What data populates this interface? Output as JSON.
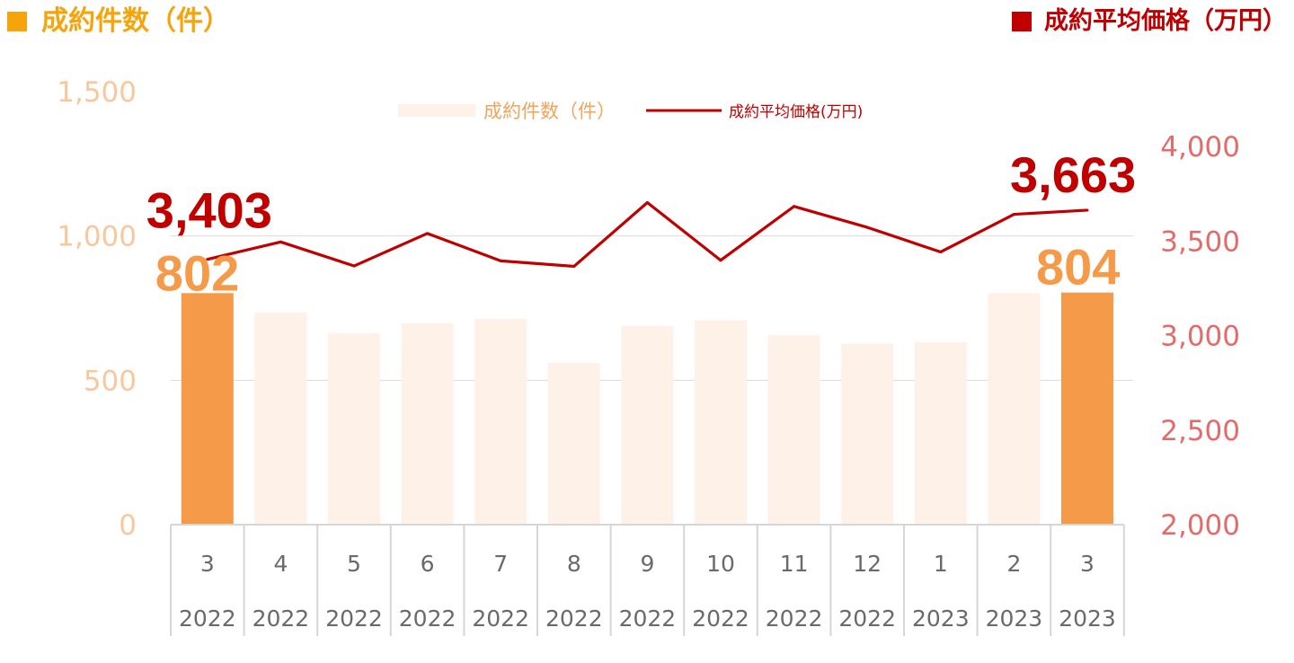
{
  "header": {
    "left_title": "成約件数（件）",
    "right_title": "成約平均価格（万円）"
  },
  "colors": {
    "bar_highlight": "#f59a48",
    "bar_normal": "#fdf1e8",
    "line": "#c00000",
    "left_axis": "#f8c89c",
    "right_axis": "#e56b6b"
  },
  "chart_data": {
    "type": "bar",
    "categories": [
      "3",
      "4",
      "5",
      "6",
      "7",
      "8",
      "9",
      "10",
      "11",
      "12",
      "1",
      "2",
      "3"
    ],
    "years": [
      "2022",
      "2022",
      "2022",
      "2022",
      "2022",
      "2022",
      "2022",
      "2022",
      "2022",
      "2022",
      "2023",
      "2023",
      "2023"
    ],
    "series": [
      {
        "name": "成約件数（件）",
        "type": "bar",
        "axis": "left",
        "values": [
          802,
          735,
          664,
          698,
          713,
          561,
          688,
          708,
          656,
          627,
          632,
          802,
          804
        ],
        "highlight": [
          true,
          false,
          false,
          false,
          false,
          false,
          false,
          false,
          false,
          false,
          false,
          false,
          true
        ]
      },
      {
        "name": "成約平均価格(万円)",
        "type": "line",
        "axis": "right",
        "values": [
          3403,
          3495,
          3368,
          3540,
          3395,
          3366,
          3703,
          3398,
          3683,
          3572,
          3442,
          3641,
          3663
        ]
      }
    ],
    "y_left": {
      "ylim": [
        0,
        1500
      ],
      "ticks": [
        "0",
        "500",
        "1,000",
        "1,500"
      ],
      "tick_values": [
        0,
        500,
        1000,
        1500
      ]
    },
    "y_right": {
      "ylim": [
        2000,
        4000
      ],
      "ticks": [
        "2,000",
        "2,500",
        "3,000",
        "3,500",
        "4,000"
      ],
      "tick_values": [
        2000,
        2500,
        3000,
        3500,
        4000
      ]
    },
    "data_labels": {
      "bar_first": "802",
      "bar_last": "804",
      "line_first": "3,403",
      "line_last": "3,663"
    },
    "grid": true,
    "legend": "top-center"
  }
}
